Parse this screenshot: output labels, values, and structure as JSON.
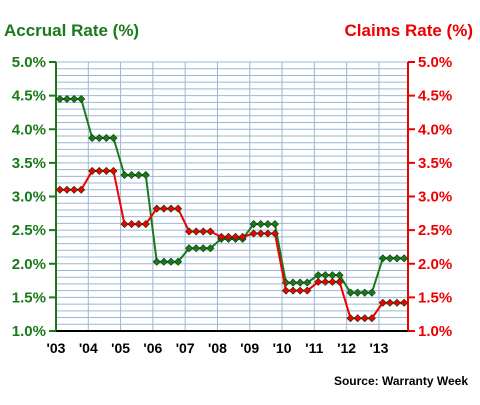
{
  "chart_data": {
    "type": "line",
    "left_axis_title": "Accrual Rate (%)",
    "right_axis_title": "Claims Rate (%)",
    "source": "Source: Warranty Week",
    "ylim": [
      1.0,
      5.0
    ],
    "y_ticks": [
      "1.0%",
      "1.5%",
      "2.0%",
      "2.5%",
      "3.0%",
      "3.5%",
      "4.0%",
      "4.5%",
      "5.0%"
    ],
    "x_ticks": [
      "'03",
      "'04",
      "'05",
      "'06",
      "'07",
      "'08",
      "'09",
      "'10",
      "'11",
      "'12",
      "'13"
    ],
    "grid": true,
    "colors": {
      "accrual": "#1a7a1a",
      "claims": "#ee0000",
      "grid": "#9bb7d4"
    },
    "series": [
      {
        "key": "accrual",
        "values": [
          4.45,
          4.45,
          4.45,
          4.45,
          3.87,
          3.87,
          3.87,
          3.87,
          3.32,
          3.32,
          3.32,
          3.32,
          2.03,
          2.03,
          2.03,
          2.03,
          2.23,
          2.23,
          2.23,
          2.23,
          2.37,
          2.37,
          2.37,
          2.37,
          2.59,
          2.59,
          2.59,
          2.59,
          1.72,
          1.72,
          1.72,
          1.72,
          1.83,
          1.83,
          1.83,
          1.83,
          1.57,
          1.57,
          1.57,
          1.57,
          2.08,
          2.08,
          2.08,
          2.08
        ]
      },
      {
        "key": "claims",
        "values": [
          3.1,
          3.1,
          3.1,
          3.1,
          3.38,
          3.38,
          3.38,
          3.38,
          2.59,
          2.59,
          2.59,
          2.59,
          2.82,
          2.82,
          2.82,
          2.82,
          2.48,
          2.48,
          2.48,
          2.48,
          2.4,
          2.4,
          2.4,
          2.4,
          2.45,
          2.45,
          2.45,
          2.45,
          1.6,
          1.6,
          1.6,
          1.6,
          1.73,
          1.73,
          1.73,
          1.73,
          1.19,
          1.19,
          1.19,
          1.19,
          1.42,
          1.42,
          1.42,
          1.42
        ]
      }
    ]
  }
}
